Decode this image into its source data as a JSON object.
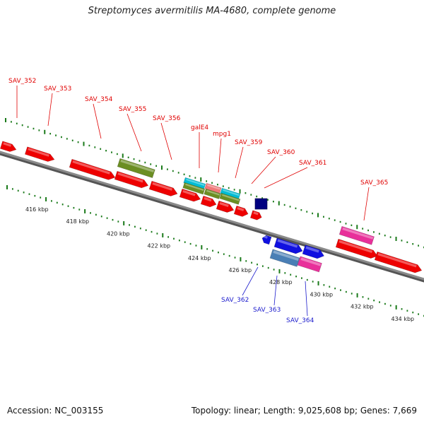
{
  "title": "Streptomyces avermitilis MA-4680, complete genome",
  "footer": {
    "accession": "Accession: NC_003155",
    "stats": "Topology: linear; Length: 9,025,608 bp; Genes: 7,669"
  },
  "colors": {
    "forward_label": "#e00000",
    "reverse_label": "#1a1acc",
    "backbone": "#8a8a8a",
    "tick_marks": "#1a7a1a"
  },
  "axis": {
    "unit": "kbp",
    "tick_labels": [
      "416 kbp",
      "418 kbp",
      "420 kbp",
      "422 kbp",
      "424 kbp",
      "426 kbp",
      "428 kbp",
      "430 kbp",
      "432 kbp",
      "434 kbp"
    ]
  },
  "forward_genes": [
    "SAV_352",
    "SAV_353",
    "SAV_354",
    "SAV_355",
    "SAV_356",
    "galE4",
    "mpg1",
    "SAV_359",
    "SAV_360",
    "SAV_361",
    "SAV_365"
  ],
  "reverse_genes": [
    "SAV_362",
    "SAV_363",
    "SAV_364"
  ]
}
